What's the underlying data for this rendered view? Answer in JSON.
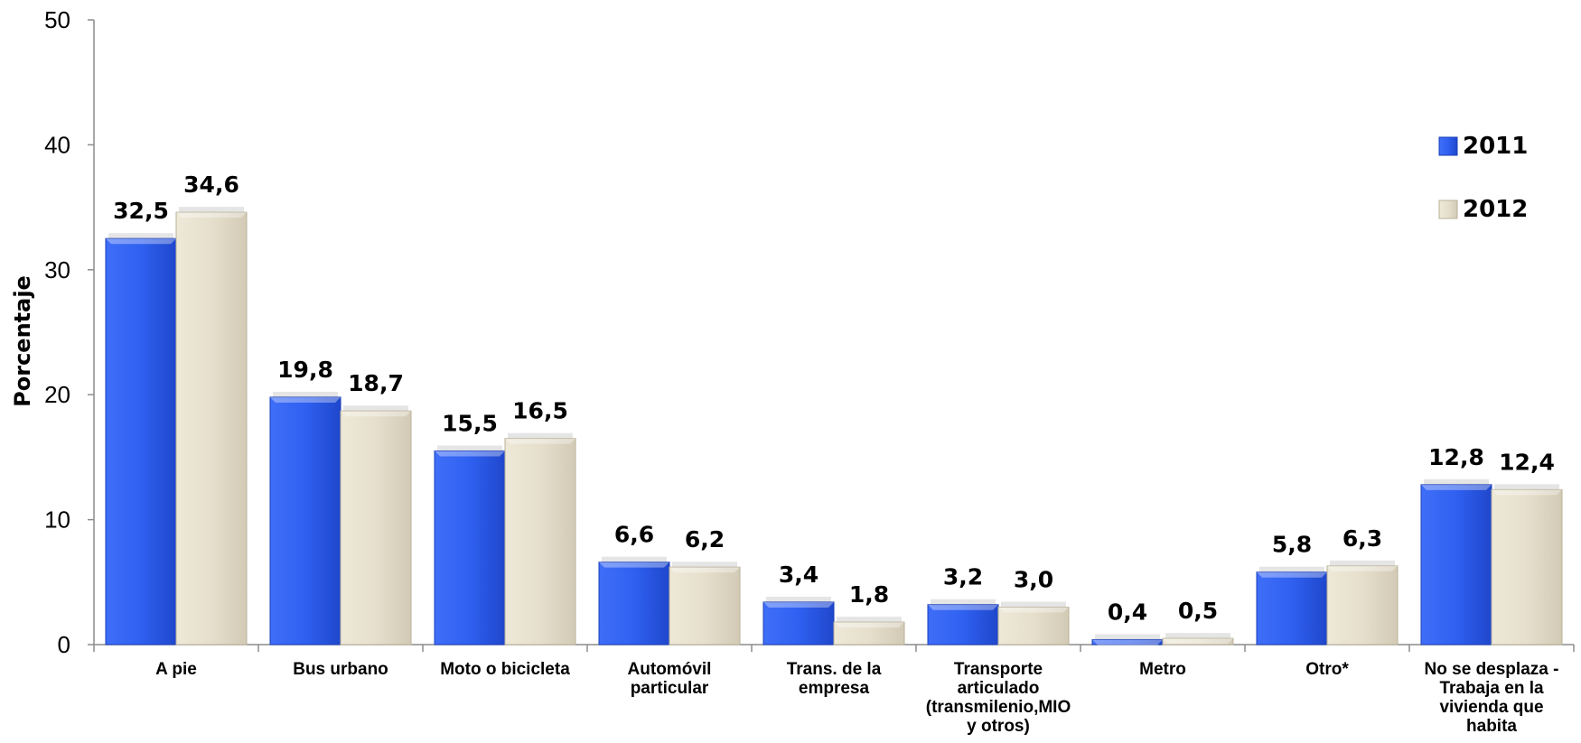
{
  "chart_data": {
    "type": "bar",
    "ylabel": "Porcentaje",
    "xlabel": "",
    "ylim": [
      0,
      50
    ],
    "yticks": [
      0,
      10,
      20,
      30,
      40,
      50
    ],
    "grid": false,
    "legend_position": "right",
    "categories": [
      [
        "A pie"
      ],
      [
        "Bus urbano"
      ],
      [
        "Moto o bicicleta"
      ],
      [
        "Automóvil",
        "particular"
      ],
      [
        "Trans. de la",
        "empresa"
      ],
      [
        "Transporte",
        "articulado",
        "(transmilenio,MIO",
        "y otros)"
      ],
      [
        "Metro"
      ],
      [
        "Otro*"
      ],
      [
        "No se desplaza -",
        "Trabaja en la",
        "vivienda que",
        "habita"
      ]
    ],
    "series": [
      {
        "name": "2011",
        "color": "#2e5ff2",
        "values": [
          32.5,
          19.8,
          15.5,
          6.6,
          3.4,
          3.2,
          0.4,
          5.8,
          12.8
        ],
        "labels": [
          "32,5",
          "19,8",
          "15,5",
          "6,6",
          "3,4",
          "3,2",
          "0,4",
          "5,8",
          "12,8"
        ]
      },
      {
        "name": "2012",
        "color": "#e8e1cf",
        "values": [
          34.6,
          18.7,
          16.5,
          6.2,
          1.8,
          3.0,
          0.5,
          6.3,
          12.4
        ],
        "labels": [
          "34,6",
          "18,7",
          "16,5",
          "6,2",
          "1,8",
          "3,0",
          "0,5",
          "6,3",
          "12,4"
        ]
      }
    ]
  }
}
